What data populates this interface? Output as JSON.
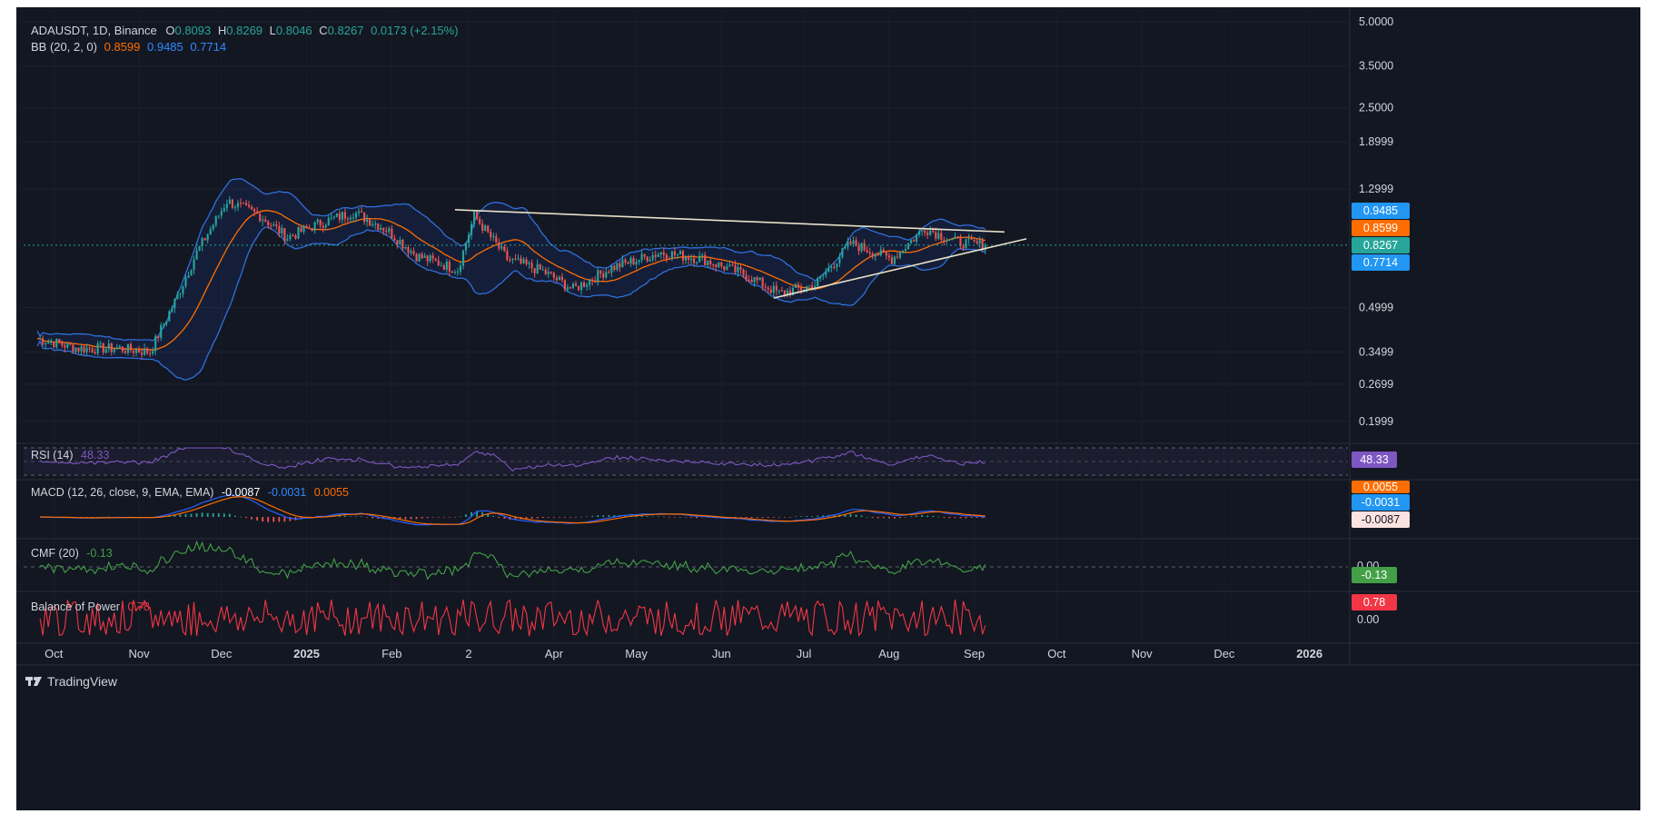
{
  "header": {
    "symbol": "ADAUSDT, 1D, Binance",
    "o_label": "O",
    "o_value": "0.8093",
    "h_label": "H",
    "h_value": "0.8269",
    "l_label": "L",
    "l_value": "0.8046",
    "c_label": "C",
    "c_value": "0.8267",
    "change": "0.0173 (+2.15%)",
    "bb_label": "BB (20, 2, 0)",
    "bb_basis": "0.8599",
    "bb_upper": "0.9485",
    "bb_lower": "0.7714"
  },
  "price_axis": {
    "ticks": [
      "5.0000",
      "3.5000",
      "2.5000",
      "1.8999",
      "1.2999",
      "0.4999",
      "0.3499",
      "0.2699",
      "0.1999"
    ],
    "badges": {
      "upper": "0.9485",
      "basis": "0.8599",
      "last": "0.8267",
      "lower": "0.7714"
    }
  },
  "time_axis": {
    "labels": [
      "Oct",
      "Nov",
      "Dec",
      "2025",
      "Feb",
      "2",
      "Apr",
      "May",
      "Jun",
      "Jul",
      "Aug",
      "Sep",
      "Oct",
      "Nov",
      "Dec",
      "2026"
    ]
  },
  "rsi": {
    "label": "RSI (14)",
    "value": "48.33"
  },
  "macd": {
    "label": "MACD (12, 26, close, 9, EMA, EMA)",
    "v1": "-0.0087",
    "v2": "-0.0031",
    "v3": "0.0055",
    "badges": [
      "0.0055",
      "-0.0031",
      "-0.0087"
    ]
  },
  "cmf": {
    "label": "CMF (20)",
    "value": "-0.13",
    "zero_tick": "0.00",
    "badge": "-0.13"
  },
  "bop": {
    "label": "Balance of Power",
    "value": "0.78",
    "zero_tick": "0.00",
    "badge": "0.78"
  },
  "logo": {
    "text": "TradingView"
  },
  "colors": {
    "background": "#131722",
    "up": "#26a69a",
    "down": "#ef5350",
    "bb_band": "#2962ff",
    "bb_basis": "#ff6d00",
    "rsi": "#7e57c2",
    "cmf": "#43a047",
    "bop": "#f23645",
    "trendline": "#e8e0c8"
  },
  "chart_data": [
    {
      "type": "candlestick",
      "title": "ADAUSDT, 1D, Binance",
      "scale": "log",
      "ylim": [
        0.17,
        5.3
      ],
      "x_range": [
        "2024-09-20",
        "2026-01-15"
      ],
      "grid": true,
      "last": {
        "open": 0.8093,
        "high": 0.8269,
        "low": 0.8046,
        "close": 0.8267
      },
      "monthly_closes": [
        {
          "x": "2024-09-25",
          "y": 0.39
        },
        {
          "x": "2024-10-10",
          "y": 0.36
        },
        {
          "x": "2024-10-25",
          "y": 0.36
        },
        {
          "x": "2024-11-05",
          "y": 0.35
        },
        {
          "x": "2024-11-15",
          "y": 0.55
        },
        {
          "x": "2024-11-22",
          "y": 0.78
        },
        {
          "x": "2024-12-03",
          "y": 1.18
        },
        {
          "x": "2024-12-15",
          "y": 1.05
        },
        {
          "x": "2024-12-25",
          "y": 0.88
        },
        {
          "x": "2025-01-05",
          "y": 0.98
        },
        {
          "x": "2025-01-18",
          "y": 1.08
        },
        {
          "x": "2025-01-30",
          "y": 0.94
        },
        {
          "x": "2025-02-10",
          "y": 0.76
        },
        {
          "x": "2025-02-25",
          "y": 0.68
        },
        {
          "x": "2025-03-03",
          "y": 1.05
        },
        {
          "x": "2025-03-15",
          "y": 0.74
        },
        {
          "x": "2025-03-28",
          "y": 0.67
        },
        {
          "x": "2025-04-08",
          "y": 0.58
        },
        {
          "x": "2025-04-22",
          "y": 0.69
        },
        {
          "x": "2025-05-10",
          "y": 0.78
        },
        {
          "x": "2025-05-25",
          "y": 0.74
        },
        {
          "x": "2025-06-10",
          "y": 0.65
        },
        {
          "x": "2025-06-22",
          "y": 0.56
        },
        {
          "x": "2025-07-05",
          "y": 0.6
        },
        {
          "x": "2025-07-18",
          "y": 0.84
        },
        {
          "x": "2025-08-02",
          "y": 0.74
        },
        {
          "x": "2025-08-14",
          "y": 0.95
        },
        {
          "x": "2025-08-25",
          "y": 0.85
        },
        {
          "x": "2025-09-05",
          "y": 0.8267
        }
      ],
      "bollinger_bands": {
        "name": "BB (20, 2, 0)",
        "basis": 0.8599,
        "upper": 0.9485,
        "lower": 0.7714
      },
      "trendlines": [
        {
          "name": "resistance",
          "from": {
            "x": "2025-02-24",
            "y": 1.1
          },
          "to": {
            "x": "2025-09-12",
            "y": 0.92
          }
        },
        {
          "name": "support",
          "from": {
            "x": "2025-06-20",
            "y": 0.54
          },
          "to": {
            "x": "2025-09-20",
            "y": 0.87
          }
        }
      ]
    },
    {
      "type": "line",
      "title": "RSI (14)",
      "last": 48.33,
      "levels": [
        70,
        50,
        30
      ],
      "ylim": [
        0,
        100
      ]
    },
    {
      "type": "histogram",
      "title": "MACD (12, 26, close, 9, EMA, EMA)",
      "last": {
        "histogram": -0.0087,
        "macd": -0.0031,
        "signal": 0.0055
      }
    },
    {
      "type": "line",
      "title": "CMF (20)",
      "last": -0.13,
      "levels": [
        0.0
      ]
    },
    {
      "type": "line",
      "title": "Balance of Power",
      "last": 0.78,
      "levels": [
        0.0
      ],
      "ylim": [
        -1,
        1
      ]
    }
  ]
}
